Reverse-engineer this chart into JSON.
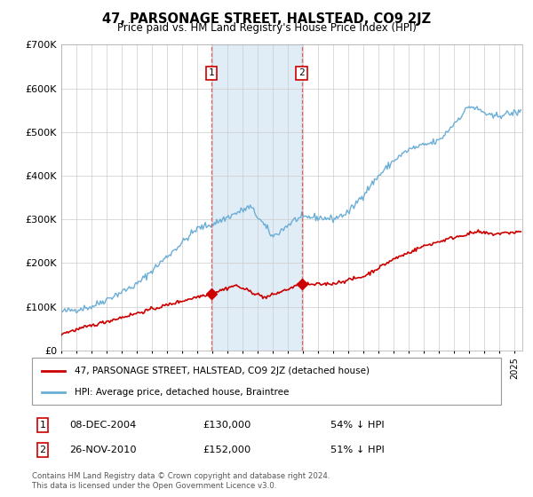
{
  "title": "47, PARSONAGE STREET, HALSTEAD, CO9 2JZ",
  "subtitle": "Price paid vs. HM Land Registry's House Price Index (HPI)",
  "ylim": [
    0,
    700000
  ],
  "yticks": [
    0,
    100000,
    200000,
    300000,
    400000,
    500000,
    600000,
    700000
  ],
  "transaction1": {
    "date": "08-DEC-2004",
    "price": 130000,
    "label": "1",
    "pct": "54% ↓ HPI"
  },
  "transaction2": {
    "date": "26-NOV-2010",
    "price": 152000,
    "label": "2",
    "pct": "51% ↓ HPI"
  },
  "marker1_x": 2004.92,
  "marker2_x": 2010.9,
  "vline1_x": 2004.92,
  "vline2_x": 2010.9,
  "hpi_color": "#6baed6",
  "price_color": "#cc0000",
  "legend_label_red": "47, PARSONAGE STREET, HALSTEAD, CO9 2JZ (detached house)",
  "legend_label_blue": "HPI: Average price, detached house, Braintree",
  "footer1": "Contains HM Land Registry data © Crown copyright and database right 2024.",
  "footer2": "This data is licensed under the Open Government Licence v3.0.",
  "xlim_left": 1995,
  "xlim_right": 2025.5
}
